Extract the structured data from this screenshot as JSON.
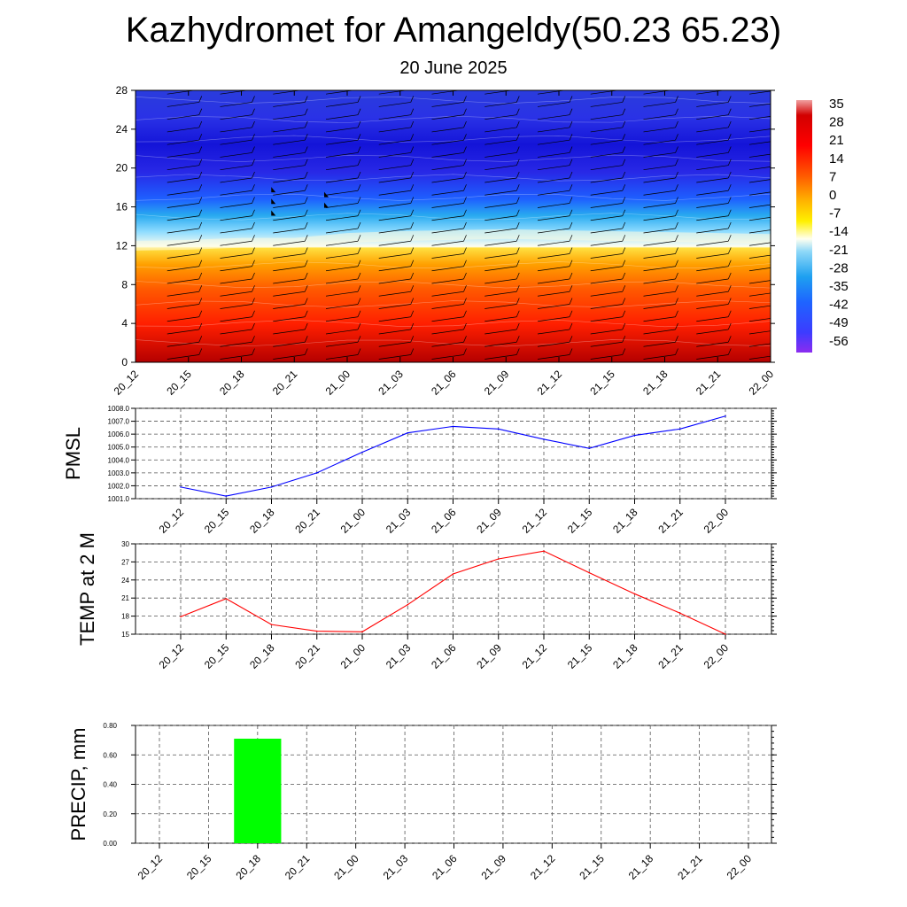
{
  "title": "Kazhydromet for Amangeldy(50.23 65.23)",
  "subtitle": "20 June 2025",
  "colorbar": {
    "labels": [
      "35",
      "28",
      "21",
      "14",
      "7",
      "0",
      "-7",
      "-14",
      "-21",
      "-28",
      "-35",
      "-42",
      "-49",
      "-56"
    ]
  },
  "chart_data": [
    {
      "type": "heatmap",
      "name": "cross-section",
      "x": [
        "20_12",
        "20_15",
        "20_18",
        "20_21",
        "21_00",
        "21_03",
        "21_06",
        "21_09",
        "21_12",
        "21_15",
        "21_18",
        "21_21",
        "22_00"
      ],
      "yticks": [
        "0",
        "4",
        "8",
        "12",
        "16",
        "20",
        "24",
        "28"
      ],
      "ylim": [
        0,
        28
      ],
      "freezing_level": [
        12.0,
        12.1,
        12.3,
        12.3,
        12.8,
        13.0,
        13.1,
        13.2,
        13.1,
        13.0,
        12.9,
        12.8,
        12.7
      ],
      "color_range": [
        -56,
        35
      ],
      "wind_barbs": true
    },
    {
      "type": "line",
      "ylabel": "PMSL",
      "x": [
        "20_12",
        "20_15",
        "20_18",
        "20_21",
        "21_00",
        "21_03",
        "21_06",
        "21_09",
        "21_12",
        "21_15",
        "21_18",
        "21_21",
        "22_00"
      ],
      "yticks": [
        "1001.0",
        "1002.0",
        "1003.0",
        "1004.0",
        "1005.0",
        "1006.0",
        "1007.0",
        "1008.0"
      ],
      "ylim": [
        1001.0,
        1008.0
      ],
      "series": [
        {
          "values": [
            1001.9,
            1001.2,
            1001.9,
            1003.0,
            1004.6,
            1006.1,
            1006.6,
            1006.4,
            1005.6,
            1004.9,
            1005.9,
            1006.4,
            1007.4
          ],
          "color": "#0000ff"
        }
      ],
      "grid": true
    },
    {
      "type": "line",
      "ylabel": "TEMP at 2 M",
      "x": [
        "20_12",
        "20_15",
        "20_18",
        "20_21",
        "21_00",
        "21_03",
        "21_06",
        "21_09",
        "21_12",
        "21_15",
        "21_18",
        "21_21",
        "22_00"
      ],
      "yticks": [
        "15",
        "18",
        "21",
        "24",
        "27",
        "30"
      ],
      "ylim": [
        15,
        30
      ],
      "series": [
        {
          "values": [
            17.9,
            20.9,
            16.6,
            15.5,
            15.4,
            19.9,
            25.0,
            27.5,
            28.8,
            25.2,
            21.7,
            18.5,
            15.0
          ],
          "color": "#ff0000"
        }
      ],
      "grid": true
    },
    {
      "type": "bar",
      "ylabel": "PRECIP, mm",
      "categories": [
        "20_12",
        "20_15",
        "20_18",
        "20_21",
        "21_00",
        "21_03",
        "21_06",
        "21_09",
        "21_12",
        "21_15",
        "21_18",
        "21_21",
        "22_00"
      ],
      "yticks": [
        "0.00",
        "0.20",
        "0.40",
        "0.60",
        "0.80"
      ],
      "ylim": [
        0,
        0.8
      ],
      "values": [
        0,
        0,
        0.71,
        0,
        0,
        0,
        0,
        0,
        0,
        0,
        0,
        0,
        0
      ],
      "color": "#00ff00",
      "grid": true
    }
  ]
}
